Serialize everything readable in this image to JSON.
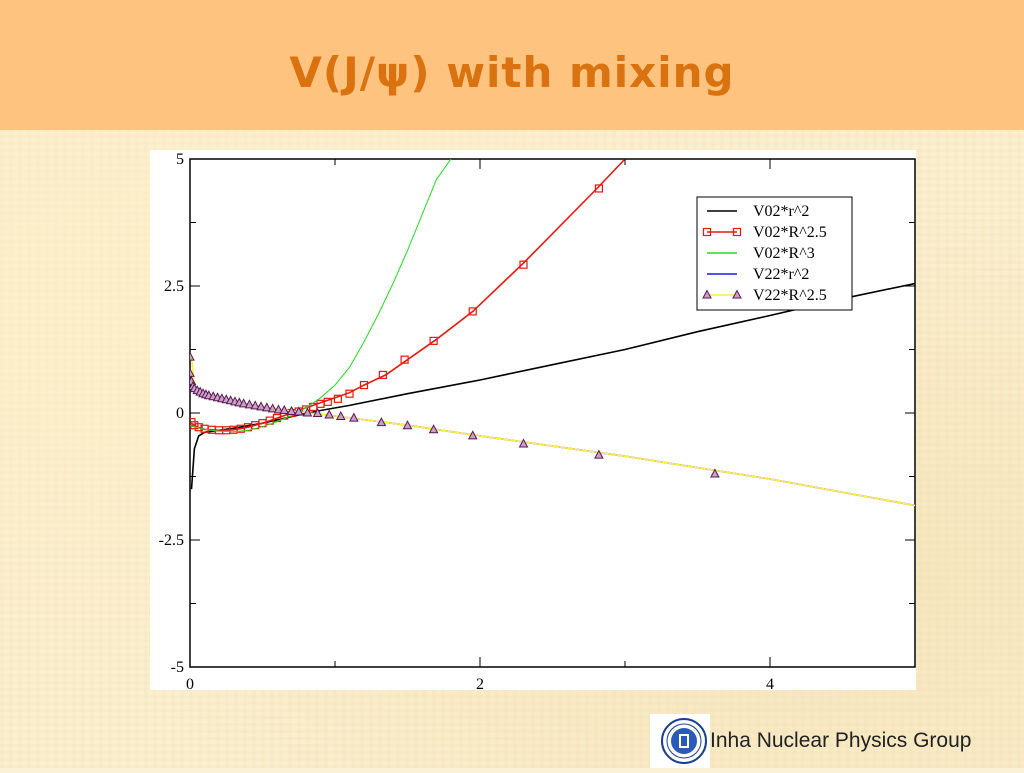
{
  "slide": {
    "title": "V(J/ψ) with mixing",
    "footer": "Inha Nuclear Physics Group"
  },
  "colors": {
    "banner": "#ffc380",
    "title": "#d9720f",
    "background": "#fbefcf"
  },
  "chart_data": {
    "type": "line",
    "title": "",
    "xlabel": "",
    "ylabel": "",
    "xlim": [
      0,
      5
    ],
    "ylim": [
      -5,
      5
    ],
    "x_ticks": [
      "0",
      "2",
      "4"
    ],
    "y_ticks": [
      "5",
      "2.5",
      "0",
      "-2.5",
      "-5"
    ],
    "legend_position": "top-right",
    "grid": false,
    "series": [
      {
        "name": "V02*r^2",
        "color": "#000000",
        "marker": "none",
        "x": [
          0.01,
          0.03,
          0.06,
          0.1,
          0.2,
          0.3,
          0.5,
          0.7,
          0.9,
          1.1,
          1.5,
          2.0,
          2.5,
          3.0,
          3.5,
          4.0,
          4.5,
          5.0
        ],
        "y": [
          -1.5,
          -0.7,
          -0.45,
          -0.38,
          -0.34,
          -0.3,
          -0.2,
          -0.07,
          0.05,
          0.15,
          0.38,
          0.65,
          0.95,
          1.25,
          1.6,
          1.92,
          2.25,
          2.55
        ]
      },
      {
        "name": "V02*R^2.5",
        "color": "#e8190c",
        "marker": "square",
        "x": [
          0.01,
          0.05,
          0.1,
          0.2,
          0.3,
          0.4,
          0.5,
          0.6,
          0.7,
          0.8,
          0.9,
          1.0,
          1.1,
          1.2,
          1.35,
          1.5,
          1.7,
          1.95,
          2.3,
          2.8,
          3.0
        ],
        "y": [
          -0.2,
          -0.28,
          -0.32,
          -0.34,
          -0.33,
          -0.28,
          -0.2,
          -0.1,
          0.0,
          0.1,
          0.2,
          0.3,
          0.4,
          0.55,
          0.75,
          1.05,
          1.45,
          2.0,
          2.95,
          4.4,
          5.0
        ],
        "marker_x": [
          0.01,
          0.03,
          0.06,
          0.1,
          0.15,
          0.2,
          0.25,
          0.3,
          0.35,
          0.4,
          0.45,
          0.5,
          0.55,
          0.6,
          0.65,
          0.7,
          0.75,
          0.8,
          0.85,
          0.9,
          0.95,
          1.02,
          1.1,
          1.2,
          1.33,
          1.48,
          1.68,
          1.95,
          2.3,
          2.82
        ],
        "marker_y": [
          -0.18,
          -0.24,
          -0.28,
          -0.31,
          -0.33,
          -0.34,
          -0.34,
          -0.33,
          -0.31,
          -0.28,
          -0.24,
          -0.2,
          -0.15,
          -0.1,
          -0.05,
          0.0,
          0.03,
          0.07,
          0.12,
          0.18,
          0.22,
          0.28,
          0.38,
          0.55,
          0.75,
          1.05,
          1.42,
          2.0,
          2.92,
          4.42
        ]
      },
      {
        "name": "V02*R^3",
        "color": "#22dd22",
        "marker": "none",
        "x": [
          0.0,
          0.1,
          0.2,
          0.3,
          0.4,
          0.5,
          0.6,
          0.7,
          0.8,
          0.9,
          1.0,
          1.1,
          1.2,
          1.3,
          1.4,
          1.5,
          1.6,
          1.7,
          1.8
        ],
        "y": [
          -0.25,
          -0.32,
          -0.36,
          -0.37,
          -0.34,
          -0.27,
          -0.17,
          -0.05,
          0.1,
          0.3,
          0.55,
          0.9,
          1.4,
          1.95,
          2.55,
          3.2,
          3.9,
          4.6,
          5.0
        ]
      },
      {
        "name": "V22*r^2",
        "color": "#1a1aee",
        "marker": "none",
        "x": [
          0.01,
          0.03,
          0.06,
          0.1,
          0.2,
          0.3,
          0.5,
          0.7,
          1.0,
          1.5,
          2.0,
          3.0,
          4.0,
          5.0
        ],
        "y": [
          0.55,
          0.45,
          0.4,
          0.35,
          0.28,
          0.22,
          0.12,
          0.04,
          -0.06,
          -0.24,
          -0.45,
          -0.85,
          -1.3,
          -1.82
        ]
      },
      {
        "name": "V22*R^2.5",
        "color": "#ffee44",
        "marker": "triangle",
        "x": [
          0.01,
          0.03,
          0.06,
          0.1,
          0.2,
          0.3,
          0.5,
          0.7,
          1.0,
          1.5,
          2.0,
          3.0,
          4.0,
          5.0
        ],
        "y": [
          1.1,
          0.5,
          0.42,
          0.36,
          0.28,
          0.22,
          0.12,
          0.04,
          -0.06,
          -0.24,
          -0.45,
          -0.85,
          -1.3,
          -1.82
        ],
        "marker_x": [
          0.0,
          0.0,
          0.01,
          0.02,
          0.03,
          0.05,
          0.07,
          0.09,
          0.11,
          0.13,
          0.16,
          0.19,
          0.22,
          0.25,
          0.28,
          0.31,
          0.34,
          0.37,
          0.41,
          0.45,
          0.49,
          0.53,
          0.57,
          0.61,
          0.65,
          0.7,
          0.75,
          0.81,
          0.88,
          0.96,
          1.04,
          1.13,
          1.32,
          1.5,
          1.68,
          1.95,
          2.3,
          2.82,
          3.62
        ],
        "marker_y": [
          1.1,
          0.78,
          0.62,
          0.52,
          0.48,
          0.44,
          0.41,
          0.38,
          0.36,
          0.34,
          0.32,
          0.3,
          0.28,
          0.26,
          0.24,
          0.22,
          0.2,
          0.18,
          0.16,
          0.14,
          0.12,
          0.1,
          0.08,
          0.06,
          0.05,
          0.03,
          0.02,
          0.0,
          -0.01,
          -0.04,
          -0.07,
          -0.1,
          -0.19,
          -0.25,
          -0.33,
          -0.45,
          -0.61,
          -0.83,
          -1.2
        ]
      }
    ]
  }
}
